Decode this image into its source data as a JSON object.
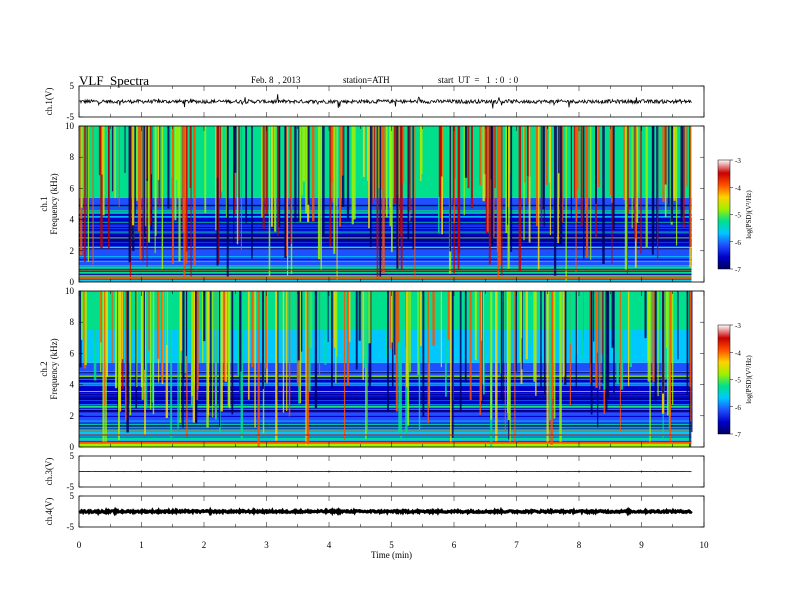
{
  "header": {
    "title": "VLF  Spectra",
    "date": "Feb. 8  , 2013",
    "station": "station=ATH",
    "start": "start  UT  =   1  : 0  : 0"
  },
  "chart_data": [
    {
      "type": "line",
      "panel": "ch1-waveform",
      "ylabel": "ch.1(V)",
      "ylim": [
        -5,
        5
      ],
      "y_ticks": [
        "5",
        "-5"
      ],
      "xlim": [
        0,
        10
      ],
      "data_extent_min": 9.8,
      "series": [
        {
          "baseline_v": 0.0,
          "amplitude_v": 0.6,
          "spike_amplitude_v": 2.0
        }
      ]
    },
    {
      "type": "heatmap",
      "panel": "ch1-spectrogram",
      "ylabel": "ch.1\nFrequency  (kHz)",
      "y_ticks": [
        "0",
        "2",
        "4",
        "6",
        "8",
        "10"
      ],
      "ylim": [
        0,
        10
      ],
      "xlim": [
        0,
        10
      ],
      "data_extent_min": 9.8,
      "colorbar": {
        "label": "log(PSD)(V²/Hz)",
        "ticks": [
          "-3",
          "-4",
          "-5",
          "-6",
          "-7"
        ],
        "range": [
          -7,
          -3
        ]
      },
      "bands": [
        {
          "from_khz": 0.0,
          "to_khz": 0.4,
          "logpsd": -4.2
        },
        {
          "from_khz": 0.4,
          "to_khz": 1.0,
          "logpsd": -5.2
        },
        {
          "from_khz": 1.0,
          "to_khz": 2.2,
          "logpsd": -5.8
        },
        {
          "from_khz": 2.2,
          "to_khz": 4.6,
          "logpsd": -6.4
        },
        {
          "from_khz": 4.6,
          "to_khz": 5.4,
          "logpsd": -5.9
        },
        {
          "from_khz": 5.4,
          "to_khz": 7.5,
          "logpsd": -5.2
        },
        {
          "from_khz": 7.5,
          "to_khz": 10.0,
          "logpsd": -4.9
        }
      ],
      "burst_logpsd": -3.9
    },
    {
      "type": "heatmap",
      "panel": "ch2-spectrogram",
      "ylabel": "ch.2\nFrequency  (kHz)",
      "y_ticks": [
        "0",
        "2",
        "4",
        "6",
        "8",
        "10"
      ],
      "ylim": [
        0,
        10
      ],
      "xlim": [
        0,
        10
      ],
      "data_extent_min": 9.8,
      "colorbar": {
        "label": "log(PSD)(V²/Hz)",
        "ticks": [
          "-3",
          "-4",
          "-5",
          "-6",
          "-7"
        ],
        "range": [
          -7,
          -3
        ]
      },
      "bands": [
        {
          "from_khz": 0.0,
          "to_khz": 0.4,
          "logpsd": -4.6
        },
        {
          "from_khz": 0.4,
          "to_khz": 1.0,
          "logpsd": -5.4
        },
        {
          "from_khz": 1.0,
          "to_khz": 2.2,
          "logpsd": -5.8
        },
        {
          "from_khz": 2.2,
          "to_khz": 4.6,
          "logpsd": -6.4
        },
        {
          "from_khz": 4.6,
          "to_khz": 5.4,
          "logpsd": -5.9
        },
        {
          "from_khz": 5.4,
          "to_khz": 7.5,
          "logpsd": -5.4
        },
        {
          "from_khz": 7.5,
          "to_khz": 10.0,
          "logpsd": -5.1
        }
      ],
      "burst_logpsd": -4.3
    },
    {
      "type": "line",
      "panel": "ch3-waveform",
      "ylabel": "ch.3(V)",
      "ylim": [
        -5,
        5
      ],
      "y_ticks": [
        "5",
        "-5"
      ],
      "xlim": [
        0,
        10
      ],
      "data_extent_min": 9.8,
      "series": [
        {
          "baseline_v": 0.0,
          "amplitude_v": 0.05
        }
      ]
    },
    {
      "type": "line",
      "panel": "ch4-waveform",
      "ylabel": "ch.4(V)",
      "ylim": [
        -5,
        5
      ],
      "y_ticks": [
        "5",
        "-5"
      ],
      "xlim": [
        0,
        10
      ],
      "data_extent_min": 9.8,
      "series": [
        {
          "baseline_v": 0.0,
          "amplitude_v": 0.3
        }
      ]
    }
  ],
  "x_axis": {
    "label": "Time  (min)",
    "ticks": [
      "0",
      "1",
      "2",
      "3",
      "4",
      "5",
      "6",
      "7",
      "8",
      "9",
      "10"
    ]
  },
  "colors": {
    "frame": "#000000",
    "colormap": [
      "#000060",
      "#0000c8",
      "#1e50ff",
      "#00c8ff",
      "#00e08c",
      "#a0f000",
      "#ffd200",
      "#ff5000",
      "#c80000",
      "#ffffff"
    ]
  }
}
